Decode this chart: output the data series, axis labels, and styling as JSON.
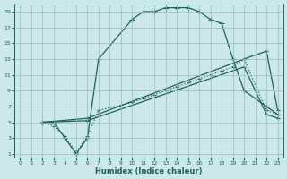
{
  "xlabel": "Humidex (Indice chaleur)",
  "bg_color": "#cce8e8",
  "grid_color": "#99bbbb",
  "line_color": "#1a6060",
  "xlim": [
    -0.5,
    23.5
  ],
  "ylim": [
    0.5,
    20
  ],
  "xticks": [
    0,
    1,
    2,
    3,
    4,
    5,
    6,
    7,
    8,
    9,
    10,
    11,
    12,
    13,
    14,
    15,
    16,
    17,
    18,
    19,
    20,
    21,
    22,
    23
  ],
  "yticks": [
    1,
    3,
    5,
    7,
    9,
    11,
    13,
    15,
    17,
    19
  ],
  "series": [
    {
      "x": [
        2,
        3,
        4,
        5,
        6,
        7,
        10,
        11,
        12,
        13,
        14,
        15,
        16,
        17,
        18,
        19,
        20,
        22,
        23
      ],
      "y": [
        5,
        5,
        3,
        1,
        3,
        13,
        18,
        19,
        19,
        19.5,
        19.5,
        19.5,
        19,
        18,
        17.5,
        13,
        9,
        7,
        6
      ],
      "marker": "+",
      "markersize": 4,
      "linestyle": "-",
      "linewidth": 0.9
    },
    {
      "x": [
        2,
        3,
        4,
        5,
        6,
        7,
        10,
        11,
        12,
        13,
        14,
        15,
        16,
        17,
        18,
        19,
        20,
        22,
        23
      ],
      "y": [
        5,
        4.5,
        3.2,
        1.2,
        3.2,
        6.5,
        7.5,
        8,
        8.5,
        9,
        9.5,
        10,
        10.5,
        11,
        11.5,
        12,
        13,
        6.5,
        6
      ],
      "marker": "+",
      "markersize": 3,
      "linestyle": ":",
      "linewidth": 0.9
    },
    {
      "x": [
        2,
        6,
        20,
        22,
        23
      ],
      "y": [
        5,
        5.5,
        13,
        14,
        6.5
      ],
      "marker": "+",
      "markersize": 3,
      "linestyle": "-",
      "linewidth": 0.9
    },
    {
      "x": [
        2,
        6,
        20,
        22,
        23
      ],
      "y": [
        5,
        5.2,
        12,
        6,
        5.5
      ],
      "marker": "+",
      "markersize": 3,
      "linestyle": "-",
      "linewidth": 0.9
    }
  ]
}
